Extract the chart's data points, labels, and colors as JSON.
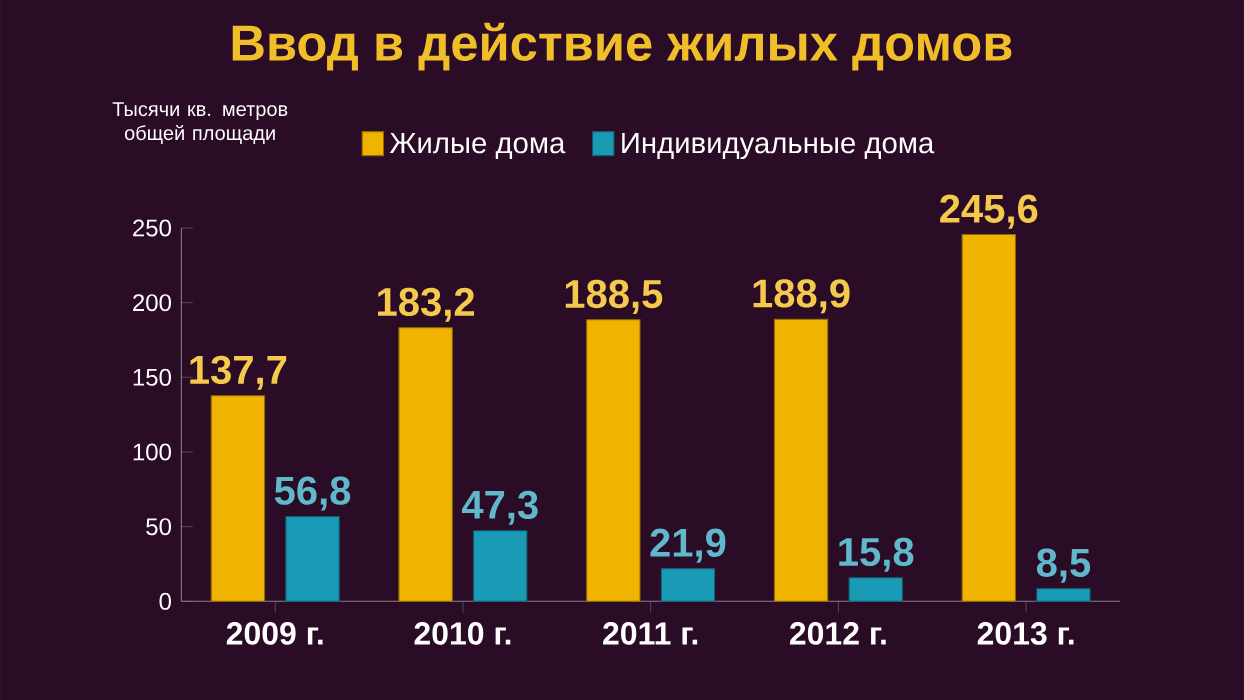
{
  "chart_data": {
    "type": "bar",
    "title": "Ввод в действие жилых домов",
    "ylabel": "Тысячи кв. метров общей площади",
    "categories": [
      "2009 г.",
      "2010 г.",
      "2011 г.",
      "2012 г.",
      "2013 г."
    ],
    "series": [
      {
        "name": "Жилые дома",
        "color": "#f0b400",
        "values": [
          137.7,
          183.2,
          188.5,
          188.9,
          245.6
        ],
        "value_labels": [
          "137,7",
          "183,2",
          "188,5",
          "188,9",
          "245,6"
        ]
      },
      {
        "name": "Индивидуальные дома",
        "color": "#1a9bb5",
        "values": [
          56.8,
          47.3,
          21.9,
          15.8,
          8.5
        ],
        "value_labels": [
          "56,8",
          "47,3",
          "21,9",
          "15,8",
          "8,5"
        ]
      }
    ],
    "ylim": [
      0,
      250
    ],
    "yticks": [
      0,
      50,
      100,
      150,
      200,
      250
    ],
    "legend": "top"
  }
}
